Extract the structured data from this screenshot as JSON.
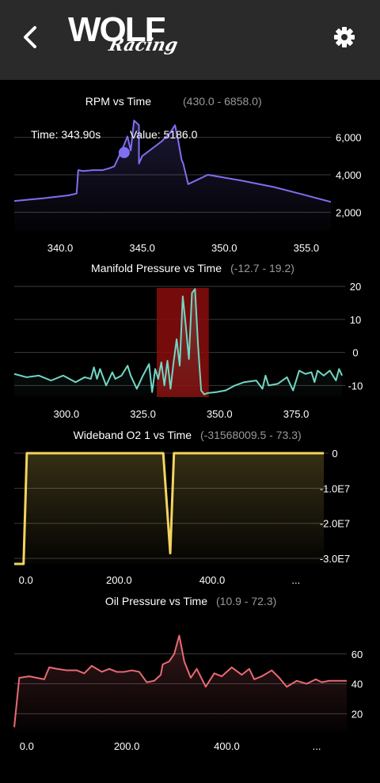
{
  "header": {
    "logo_main": "WOLF",
    "logo_sub": "Racing",
    "back_icon": "chevron-left-icon",
    "settings_icon": "gear-icon"
  },
  "colors": {
    "rpm": "#7f6ff0",
    "map": "#72d6c4",
    "o2": "#f4d35e",
    "oil": "#e86a74",
    "highlight": "#8b0d0d"
  },
  "chart_data": [
    {
      "type": "area",
      "title": "RPM vs Time",
      "range": "(430.0 - 6858.0)",
      "xlim": [
        337.2,
        356.5
      ],
      "ylim": [
        1000,
        7000
      ],
      "xticks": [
        "340.0",
        "345.0",
        "350.0",
        "355.0"
      ],
      "xtick_values": [
        340,
        345,
        350,
        355
      ],
      "yticks": [
        "6,000",
        "4,000",
        "2,000"
      ],
      "ytick_values": [
        6000,
        4000,
        2000
      ],
      "tooltip": {
        "time": "Time: 343.90s",
        "value": "Value: 5186.0"
      },
      "marker": {
        "x": 343.9,
        "y": 5186
      },
      "x": [
        337.2,
        339.0,
        340.5,
        341.0,
        341.1,
        341.4,
        342.0,
        342.6,
        343.0,
        343.3,
        343.8,
        344.1,
        344.3,
        344.5,
        344.8,
        344.8,
        345.0,
        345.6,
        346.2,
        346.7,
        347.0,
        347.2,
        347.4,
        347.5,
        347.8,
        349.0,
        351.0,
        353.0,
        355.0,
        356.5
      ],
      "y": [
        2600,
        2750,
        2900,
        3000,
        4250,
        4200,
        4250,
        4250,
        4350,
        4450,
        5400,
        6050,
        5300,
        6900,
        6650,
        4600,
        5000,
        5400,
        5800,
        6250,
        6650,
        5800,
        4800,
        4600,
        3500,
        4000,
        3700,
        3350,
        2900,
        2550
      ]
    },
    {
      "type": "area",
      "title": "Manifold Pressure vs Time",
      "range": "(-12.7 - 19.2)",
      "xlim": [
        283,
        391
      ],
      "ylim": [
        -13.5,
        20.5
      ],
      "xticks": [
        "300.0",
        "325.0",
        "350.0",
        "375.0"
      ],
      "xtick_values": [
        300,
        325,
        350,
        375
      ],
      "yticks": [
        "20",
        "10",
        "0",
        "-10"
      ],
      "ytick_values": [
        20,
        10,
        0,
        -10
      ],
      "highlight": [
        329.5,
        346.5
      ],
      "x": [
        283,
        287,
        291,
        295,
        299,
        303,
        306,
        308,
        309,
        310,
        311,
        313,
        315,
        316,
        318,
        320,
        321,
        323,
        325,
        327,
        328,
        329,
        330,
        331,
        332,
        333,
        334,
        335,
        336,
        337,
        338,
        339,
        340,
        341,
        342,
        343,
        344,
        345,
        346,
        349,
        352,
        355,
        358,
        362,
        364,
        365,
        366,
        369,
        372,
        374,
        376,
        378,
        380,
        381,
        382,
        384,
        386,
        388,
        389,
        390
      ],
      "y": [
        -6.5,
        -7.5,
        -7,
        -8.5,
        -7,
        -9,
        -7.5,
        -8,
        -4.5,
        -8,
        -5,
        -10,
        -6,
        -8,
        -7,
        -4,
        -7,
        -11,
        -7,
        -3.5,
        -12,
        -5,
        -8,
        -3,
        -10,
        -2.5,
        -11,
        -3,
        4,
        -4,
        17,
        8,
        -2,
        18,
        19.2,
        2,
        -11.5,
        -12.7,
        -12.3,
        -12,
        -11.5,
        -10,
        -9,
        -8.5,
        -11,
        -7,
        -10,
        -9.5,
        -7.5,
        -11.5,
        -5.5,
        -6.5,
        -6,
        -9,
        -5.5,
        -7,
        -5.5,
        -8.5,
        -5,
        -7
      ]
    },
    {
      "type": "area",
      "title": "Wideband O2 1 vs Time",
      "range": "(-31568009.5 - 73.3)",
      "xlim": [
        -25,
        650
      ],
      "ylim": [
        -31568009.5,
        73.3
      ],
      "xticks": [
        "0.0",
        "200.0",
        "400.0",
        "..."
      ],
      "xtick_values": [
        0,
        200,
        400,
        580
      ],
      "yticks": [
        "0",
        "-1.0E7",
        "-2.0E7",
        "-3.0E7"
      ],
      "ytick_values": [
        0,
        -10000000,
        -20000000,
        -30000000
      ],
      "x": [
        -25,
        -5,
        2,
        15,
        295,
        310,
        318,
        330,
        640
      ],
      "y": [
        -31568009.5,
        -31568009.5,
        0,
        0,
        0,
        -28500000,
        0,
        0,
        0
      ]
    },
    {
      "type": "area",
      "title": "Oil Pressure vs Time",
      "range": "(10.9 - 72.3)",
      "xlim": [
        -25,
        640
      ],
      "ylim": [
        8,
        80
      ],
      "xticks": [
        "0.0",
        "200.0",
        "400.0",
        "..."
      ],
      "xtick_values": [
        0,
        200,
        400,
        580
      ],
      "yticks": [
        "60",
        "40",
        "20"
      ],
      "ytick_values": [
        60,
        40,
        20
      ],
      "x": [
        -25,
        -15,
        5,
        20,
        35,
        45,
        60,
        80,
        100,
        115,
        130,
        150,
        165,
        180,
        195,
        210,
        225,
        240,
        255,
        268,
        272,
        285,
        295,
        305,
        315,
        328,
        340,
        358,
        375,
        390,
        410,
        430,
        445,
        455,
        470,
        490,
        505,
        520,
        540,
        560,
        578,
        590,
        605,
        620,
        640
      ],
      "y": [
        10.9,
        44,
        45,
        44,
        43,
        51,
        50,
        49,
        49,
        47,
        52,
        48,
        50,
        48,
        48,
        49,
        48,
        41,
        42,
        46,
        53,
        55,
        60,
        72.3,
        55,
        44,
        50,
        38,
        47,
        45,
        51,
        46,
        50,
        43,
        45,
        49,
        44,
        38,
        42,
        40,
        43,
        41,
        42,
        42,
        42
      ]
    }
  ]
}
